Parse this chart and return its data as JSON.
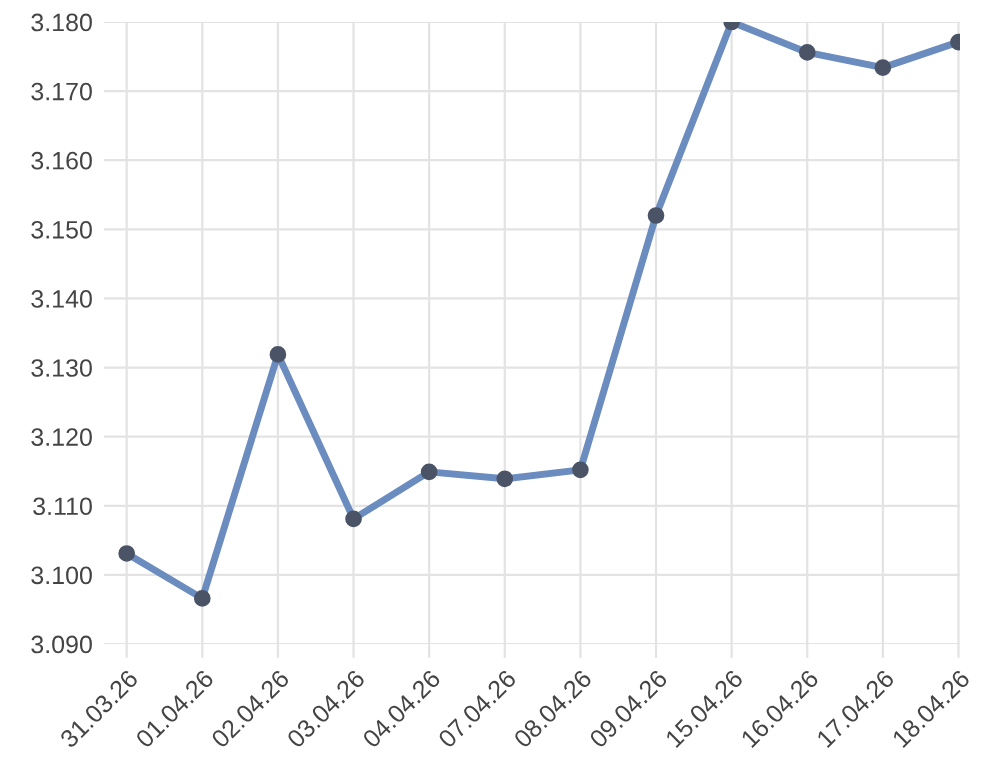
{
  "chart_data": {
    "type": "line",
    "categories": [
      "31.03.26",
      "01.04.26",
      "02.04.26",
      "03.04.26",
      "04.04.26",
      "07.04.26",
      "08.04.26",
      "09.04.26",
      "15.04.26",
      "16.04.26",
      "17.04.26",
      "18.04.26"
    ],
    "series": [
      {
        "color": "#6a8cbf",
        "values": [
          3.1031,
          3.0966,
          3.1319,
          3.1081,
          3.1149,
          3.1139,
          3.1152,
          3.152,
          3.18,
          3.1756,
          3.1734,
          3.1771
        ]
      }
    ],
    "ylim": [
      3.09,
      3.18
    ],
    "yticks": [
      {
        "value": 3.09,
        "label": "3.090"
      },
      {
        "value": 3.1,
        "label": "3.100"
      },
      {
        "value": 3.11,
        "label": "3.110"
      },
      {
        "value": 3.12,
        "label": "3.120"
      },
      {
        "value": 3.13,
        "label": "3.130"
      },
      {
        "value": 3.14,
        "label": "3.140"
      },
      {
        "value": 3.15,
        "label": "3.150"
      },
      {
        "value": 3.16,
        "label": "3.160"
      },
      {
        "value": 3.17,
        "label": "3.170"
      },
      {
        "value": 3.18,
        "label": "3.180"
      }
    ],
    "grid": true,
    "marker": "circle",
    "line_style": "solid"
  }
}
